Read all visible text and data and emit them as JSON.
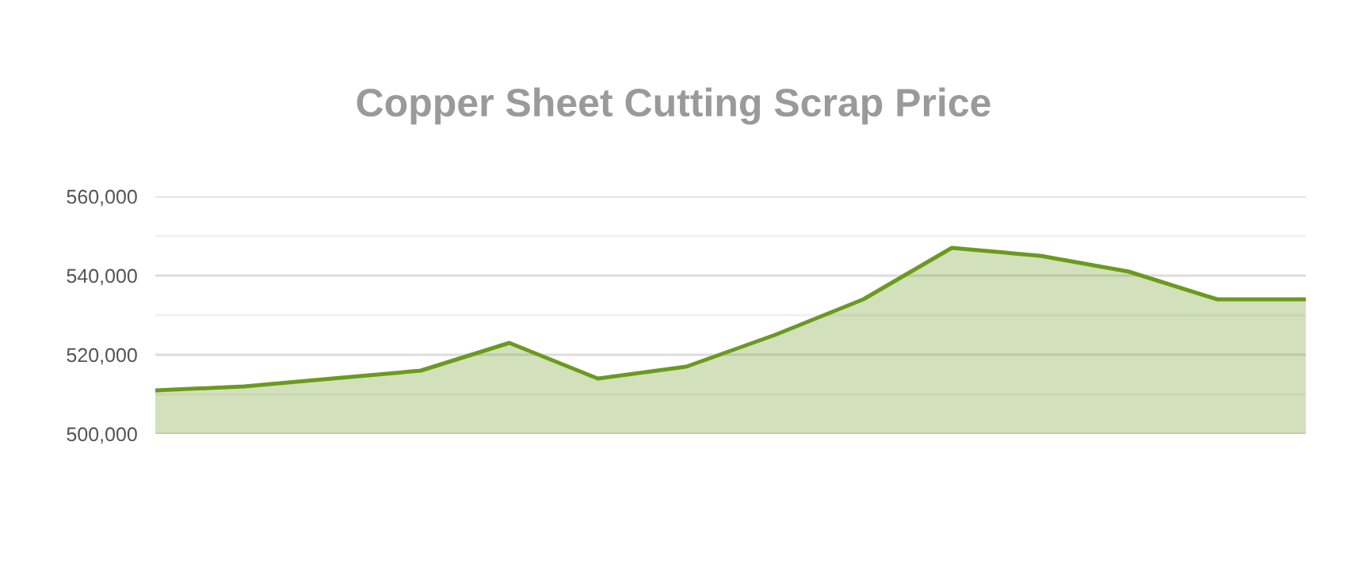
{
  "chart_data": {
    "type": "area",
    "title": "Copper Sheet Cutting Scrap Price",
    "categories": [
      null,
      null,
      null,
      null,
      null,
      null,
      null,
      null,
      null,
      null,
      null,
      null,
      null,
      null
    ],
    "series": [
      {
        "color": "#6b9a1e",
        "values": [
          511000,
          512000,
          514000,
          516000,
          523000,
          514000,
          517000,
          525000,
          534000,
          547000,
          545000,
          541000,
          534000,
          534000
        ]
      }
    ],
    "ylim": [
      500000,
      560000
    ],
    "yticks": [
      {
        "value": 500000,
        "label": "500,000"
      },
      {
        "value": 510000,
        "label": null
      },
      {
        "value": 520000,
        "label": "520,000"
      },
      {
        "value": 530000,
        "label": null
      },
      {
        "value": 540000,
        "label": "540,000"
      },
      {
        "value": 550000,
        "label": null
      },
      {
        "value": 560000,
        "label": "560,000"
      }
    ],
    "grid": "y",
    "tick_labels": "y"
  }
}
